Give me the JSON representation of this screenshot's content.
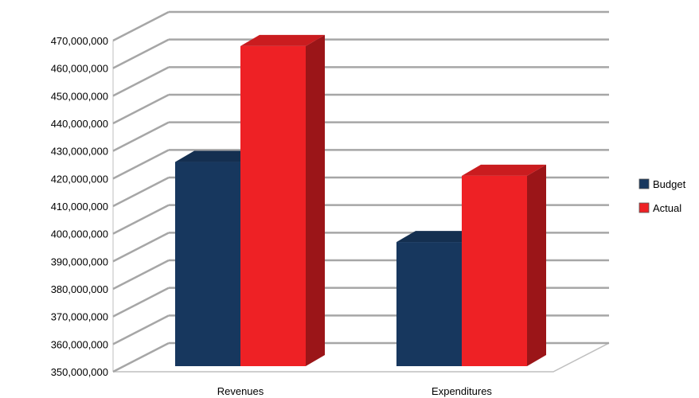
{
  "chart_data": {
    "type": "bar",
    "style": "3d-clustered",
    "categories": [
      "Revenues",
      "Expenditures"
    ],
    "series": [
      {
        "name": "Budget",
        "values": [
          426000000,
          397000000
        ],
        "color": "#17375e"
      },
      {
        "name": "Actual",
        "values": [
          468000000,
          421000000
        ],
        "color": "#ee2125"
      }
    ],
    "ylim": [
      350000000,
      470000000
    ],
    "yticks": [
      "350,000,000",
      "360,000,000",
      "370,000,000",
      "380,000,000",
      "390,000,000",
      "400,000,000",
      "410,000,000",
      "420,000,000",
      "430,000,000",
      "440,000,000",
      "450,000,000",
      "460,000,000",
      "470,000,000"
    ],
    "title": "",
    "xlabel": "",
    "ylabel": "",
    "grid": true,
    "legend_position": "right"
  }
}
